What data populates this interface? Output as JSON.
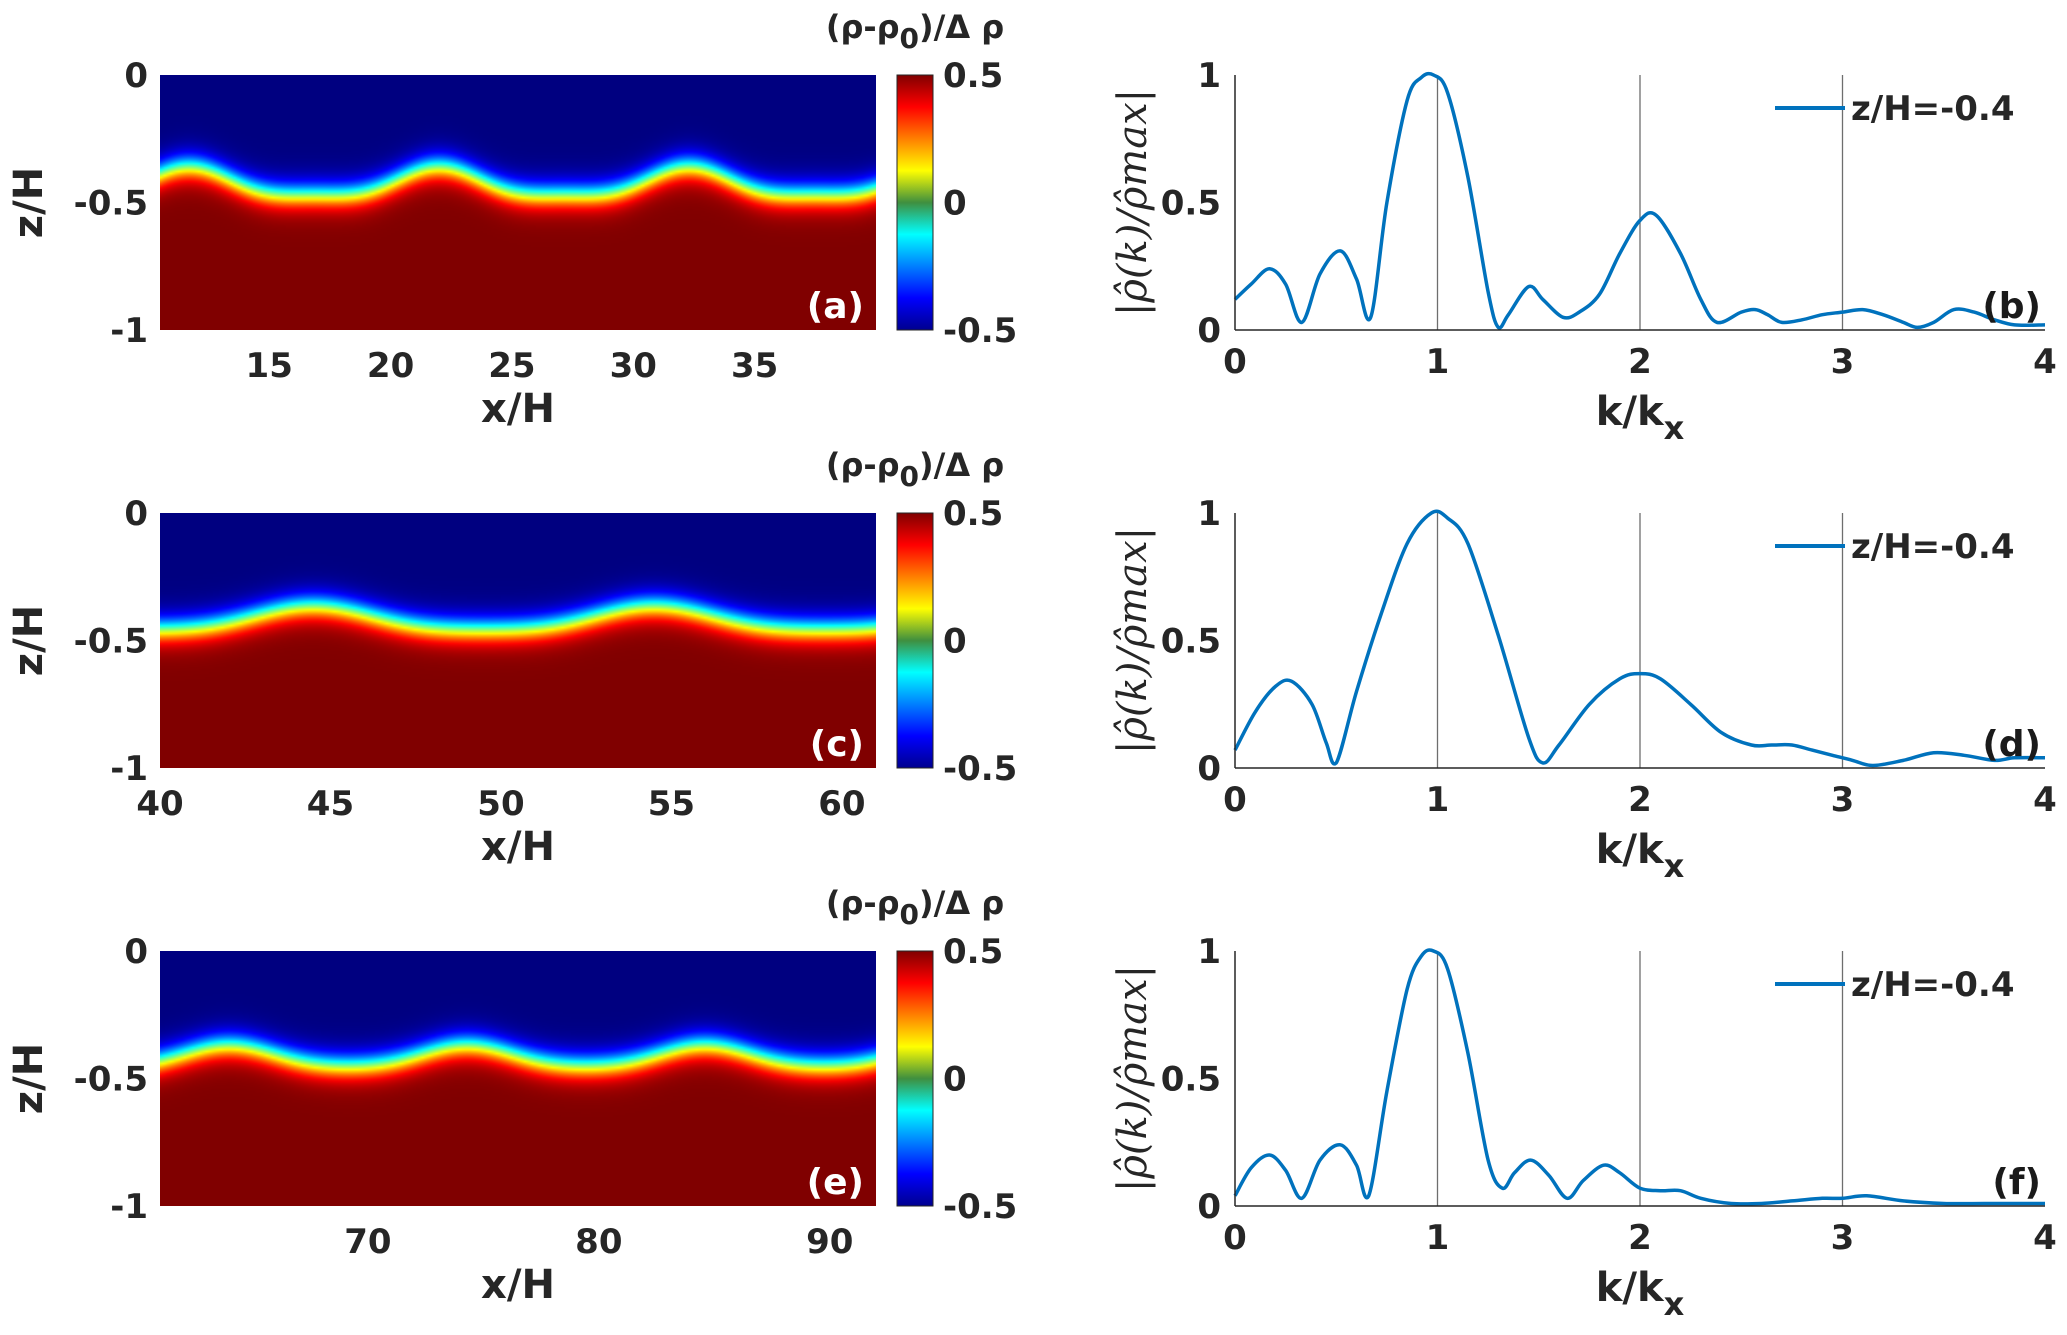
{
  "chart_data": [
    {
      "type": "heatmap",
      "panel": "(a)",
      "xlabel": "x/H",
      "ylabel": "z/H",
      "xlim": [
        10.5,
        40
      ],
      "ylim": [
        -1,
        0
      ],
      "xticks": [
        15,
        20,
        25,
        30,
        35
      ],
      "yticks": [
        0,
        -0.5,
        -1
      ],
      "colorbar": {
        "title_parts": [
          "(ρ-ρ",
          "0",
          ")/Δ ρ"
        ],
        "ticks": [
          0.5,
          0,
          -0.5
        ],
        "range": [
          -0.5,
          0.5
        ],
        "colormap": "jet"
      },
      "interface": {
        "mean_z": -0.43,
        "amplitude": 0.07,
        "wavelength": 10.3,
        "crest_x": 22.0,
        "steepness": 0.55,
        "half_width": 0.06
      }
    },
    {
      "type": "line",
      "panel": "(b)",
      "xlabel": "k/k",
      "xlabel_sub": "x",
      "ylabel": "|ρ̂(k)/ρ̂max|",
      "xlim": [
        0,
        4
      ],
      "ylim": [
        0,
        1
      ],
      "xticks": [
        0,
        1,
        2,
        3,
        4
      ],
      "yticks": [
        0,
        0.5,
        1
      ],
      "vlines": [
        1,
        2,
        3
      ],
      "series": [
        {
          "name": "z/H=-0.4",
          "color": "#0072BD",
          "x": [
            0,
            0.08,
            0.17,
            0.25,
            0.33,
            0.42,
            0.52,
            0.6,
            0.67,
            0.75,
            0.85,
            0.92,
            0.98,
            1.05,
            1.15,
            1.25,
            1.3,
            1.35,
            1.45,
            1.52,
            1.62,
            1.7,
            1.8,
            1.9,
            2.0,
            2.08,
            2.2,
            2.3,
            2.38,
            2.5,
            2.57,
            2.63,
            2.7,
            2.8,
            2.9,
            3.0,
            3.1,
            3.2,
            3.3,
            3.37,
            3.45,
            3.55,
            3.65,
            3.75,
            3.85,
            4.0
          ],
          "y": [
            0.12,
            0.18,
            0.24,
            0.18,
            0.03,
            0.22,
            0.31,
            0.2,
            0.05,
            0.5,
            0.9,
            0.99,
            1.0,
            0.93,
            0.6,
            0.15,
            0.01,
            0.06,
            0.17,
            0.12,
            0.05,
            0.07,
            0.14,
            0.3,
            0.43,
            0.45,
            0.3,
            0.12,
            0.03,
            0.07,
            0.08,
            0.06,
            0.03,
            0.04,
            0.06,
            0.07,
            0.08,
            0.06,
            0.03,
            0.01,
            0.03,
            0.08,
            0.07,
            0.04,
            0.02,
            0.02
          ]
        }
      ],
      "legend_position": "top-right"
    },
    {
      "type": "heatmap",
      "panel": "(c)",
      "xlabel": "x/H",
      "ylabel": "z/H",
      "xlim": [
        40,
        61
      ],
      "ylim": [
        -1,
        0
      ],
      "xticks": [
        40,
        45,
        50,
        55,
        60
      ],
      "yticks": [
        0,
        -0.5,
        -1
      ],
      "colorbar": {
        "title_parts": [
          "(ρ-ρ",
          "0",
          ")/Δ ρ"
        ],
        "ticks": [
          0.5,
          0,
          -0.5
        ],
        "range": [
          -0.5,
          0.5
        ],
        "colormap": "jet"
      },
      "interface": {
        "mean_z": -0.42,
        "amplitude": 0.055,
        "wavelength": 10.0,
        "crest_x": 44.5,
        "steepness": 0.4,
        "half_width": 0.06
      }
    },
    {
      "type": "line",
      "panel": "(d)",
      "xlabel": "k/k",
      "xlabel_sub": "x",
      "ylabel": "|ρ̂(k)/ρ̂max|",
      "xlim": [
        0,
        4
      ],
      "ylim": [
        0,
        1
      ],
      "xticks": [
        0,
        1,
        2,
        3,
        4
      ],
      "yticks": [
        0,
        0.5,
        1
      ],
      "vlines": [
        1,
        2,
        3
      ],
      "series": [
        {
          "name": "z/H=-0.4",
          "color": "#0072BD",
          "x": [
            0,
            0.1,
            0.2,
            0.28,
            0.38,
            0.45,
            0.5,
            0.6,
            0.72,
            0.85,
            0.97,
            1.05,
            1.15,
            1.3,
            1.45,
            1.52,
            1.6,
            1.75,
            1.9,
            2.0,
            2.1,
            2.25,
            2.4,
            2.55,
            2.65,
            2.75,
            2.85,
            2.95,
            3.05,
            3.15,
            3.3,
            3.45,
            3.6,
            3.75,
            3.85,
            4.0
          ],
          "y": [
            0.07,
            0.22,
            0.32,
            0.34,
            0.25,
            0.1,
            0.02,
            0.3,
            0.6,
            0.88,
            1.0,
            0.98,
            0.88,
            0.52,
            0.12,
            0.02,
            0.09,
            0.25,
            0.35,
            0.37,
            0.35,
            0.25,
            0.14,
            0.09,
            0.09,
            0.09,
            0.07,
            0.05,
            0.03,
            0.01,
            0.03,
            0.06,
            0.05,
            0.03,
            0.04,
            0.04
          ]
        }
      ],
      "legend_position": "top-right"
    },
    {
      "type": "heatmap",
      "panel": "(e)",
      "xlabel": "x/H",
      "ylabel": "z/H",
      "xlim": [
        61,
        92
      ],
      "ylim": [
        -1,
        0
      ],
      "xticks": [
        70,
        80,
        90
      ],
      "yticks": [
        0,
        -0.5,
        -1
      ],
      "colorbar": {
        "title_parts": [
          "(ρ-ρ",
          "0",
          ")/Δ ρ"
        ],
        "ticks": [
          0.5,
          0,
          -0.5
        ],
        "range": [
          -0.5,
          0.5
        ],
        "colormap": "jet"
      },
      "interface": {
        "mean_z": -0.415,
        "amplitude": 0.045,
        "wavelength": 10.3,
        "crest_x": 64.0,
        "steepness": 0.25,
        "half_width": 0.06
      }
    },
    {
      "type": "line",
      "panel": "(f)",
      "xlabel": "k/k",
      "xlabel_sub": "x",
      "ylabel": "|ρ̂(k)/ρ̂max|",
      "xlim": [
        0,
        4
      ],
      "ylim": [
        0,
        1
      ],
      "xticks": [
        0,
        1,
        2,
        3,
        4
      ],
      "yticks": [
        0,
        0.5,
        1
      ],
      "vlines": [
        1,
        2,
        3
      ],
      "series": [
        {
          "name": "z/H=-0.4",
          "color": "#0072BD",
          "x": [
            0,
            0.08,
            0.17,
            0.25,
            0.33,
            0.42,
            0.52,
            0.6,
            0.66,
            0.75,
            0.85,
            0.92,
            0.98,
            1.05,
            1.15,
            1.25,
            1.32,
            1.38,
            1.46,
            1.55,
            1.64,
            1.72,
            1.82,
            1.9,
            2.0,
            2.1,
            2.2,
            2.3,
            2.45,
            2.6,
            2.75,
            2.9,
            3.0,
            3.12,
            3.3,
            3.5,
            3.7,
            3.85,
            4.0
          ],
          "y": [
            0.04,
            0.15,
            0.2,
            0.14,
            0.03,
            0.18,
            0.24,
            0.16,
            0.04,
            0.45,
            0.85,
            0.98,
            1.0,
            0.93,
            0.6,
            0.18,
            0.07,
            0.13,
            0.18,
            0.12,
            0.03,
            0.1,
            0.16,
            0.13,
            0.07,
            0.06,
            0.06,
            0.03,
            0.01,
            0.01,
            0.02,
            0.03,
            0.03,
            0.04,
            0.02,
            0.01,
            0.01,
            0.01,
            0.01
          ]
        }
      ],
      "legend_position": "top-right"
    }
  ]
}
